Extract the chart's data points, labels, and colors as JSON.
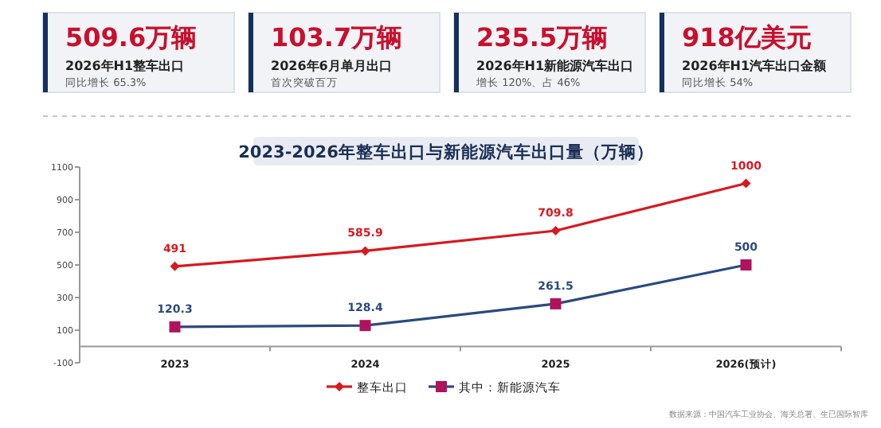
{
  "chart_data": [
    {
      "type": "other",
      "annotations": [
        "509.6万辆",
        "2026年H1整车出口",
        "同比增长 65.3%",
        "103.7万辆",
        "2026年6月单月出口",
        "首次突破百万",
        "235.5万辆",
        "2026年H1新能源汽车出口",
        "增长 120%、占 46%",
        "918亿美元",
        "2026年H1汽车出口金额",
        "同比增长 54%"
      ]
    },
    {
      "type": "line",
      "title": "2023-2026年整车出口与新能源汽车出口量（万辆）",
      "categories": [
        "2023",
        "2024",
        "2025",
        "2026(预计)"
      ],
      "series": [
        {
          "name": "整车出口",
          "color": "#d71920",
          "marker": "diamond",
          "values": [
            491,
            585.9,
            709.8,
            1000
          ]
        },
        {
          "name": "其中：新能源汽车",
          "color": "#2b4a7e",
          "colors": [
            "#b0125b",
            "#b0125b",
            "#b0125b",
            "#b0125b"
          ],
          "marker": "square",
          "values": [
            120.3,
            128.4,
            261.5,
            500
          ]
        }
      ],
      "ylim": [
        -100,
        1100
      ],
      "yticks": [
        -100,
        100,
        300,
        500,
        700,
        900,
        1100
      ],
      "grid": false,
      "legend": "bottom",
      "data_labels": true,
      "annotations": [
        "数据来源：中国汽车工业协会、海关总署、生已国际智库"
      ]
    }
  ]
}
